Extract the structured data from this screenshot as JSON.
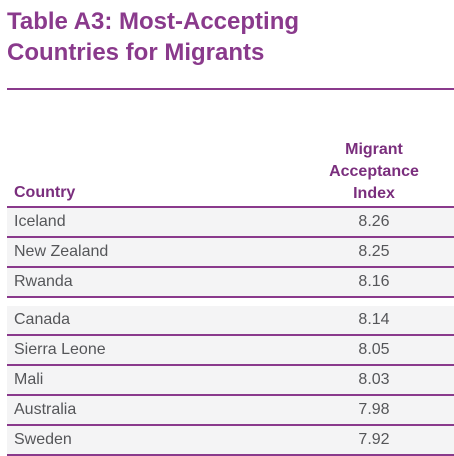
{
  "title_line1": "Table A3: Most-Accepting",
  "title_line2": "Countries for Migrants",
  "accent_color": "#8a3a8c",
  "chart_data": {
    "type": "table",
    "title": "Table A3: Most-Accepting Countries for Migrants",
    "columns": [
      "Country",
      "Migrant Acceptance Index"
    ],
    "index_header_lines": [
      "Migrant",
      "Acceptance",
      "Index"
    ],
    "rows": [
      {
        "country": "Iceland",
        "value": "8.26"
      },
      {
        "country": "New Zealand",
        "value": "8.25"
      },
      {
        "country": "Rwanda",
        "value": "8.16"
      },
      {
        "country": "Canada",
        "value": "8.14"
      },
      {
        "country": "Sierra Leone",
        "value": "8.05"
      },
      {
        "country": "Mali",
        "value": "8.03"
      },
      {
        "country": "Australia",
        "value": "7.98"
      },
      {
        "country": "Sweden",
        "value": "7.92"
      }
    ]
  }
}
